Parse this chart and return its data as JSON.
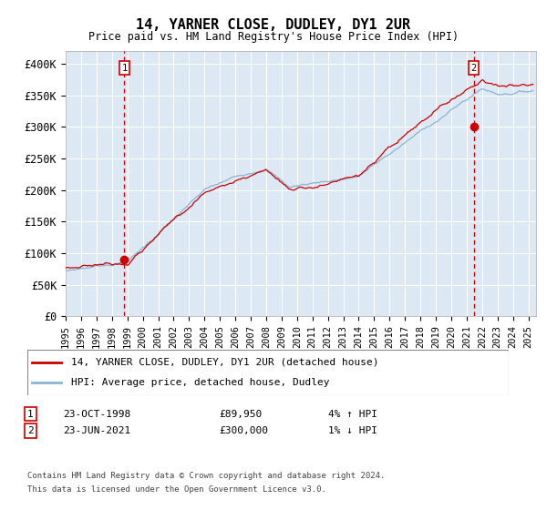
{
  "title": "14, YARNER CLOSE, DUDLEY, DY1 2UR",
  "subtitle": "Price paid vs. HM Land Registry's House Price Index (HPI)",
  "ylim": [
    0,
    420000
  ],
  "yticks": [
    0,
    50000,
    100000,
    150000,
    200000,
    250000,
    300000,
    350000,
    400000
  ],
  "ytick_labels": [
    "£0",
    "£50K",
    "£100K",
    "£150K",
    "£200K",
    "£250K",
    "£300K",
    "£350K",
    "£400K"
  ],
  "bg_color": "#dce9f5",
  "grid_color": "#ffffff",
  "sale1_date_num": 1998.81,
  "sale1_price": 89950,
  "sale2_date_num": 2021.46,
  "sale2_price": 300000,
  "legend_entries": [
    "14, YARNER CLOSE, DUDLEY, DY1 2UR (detached house)",
    "HPI: Average price, detached house, Dudley"
  ],
  "legend_colors": [
    "#cc0000",
    "#8ab4d4"
  ],
  "annotation1": [
    "1",
    "23-OCT-1998",
    "£89,950",
    "4% ↑ HPI"
  ],
  "annotation2": [
    "2",
    "23-JUN-2021",
    "£300,000",
    "1% ↓ HPI"
  ],
  "footer": "Contains HM Land Registry data © Crown copyright and database right 2024.\nThis data is licensed under the Open Government Licence v3.0.",
  "hpi_color": "#8ab4d4",
  "price_color": "#cc0000",
  "dashed_line_color": "#cc0000"
}
